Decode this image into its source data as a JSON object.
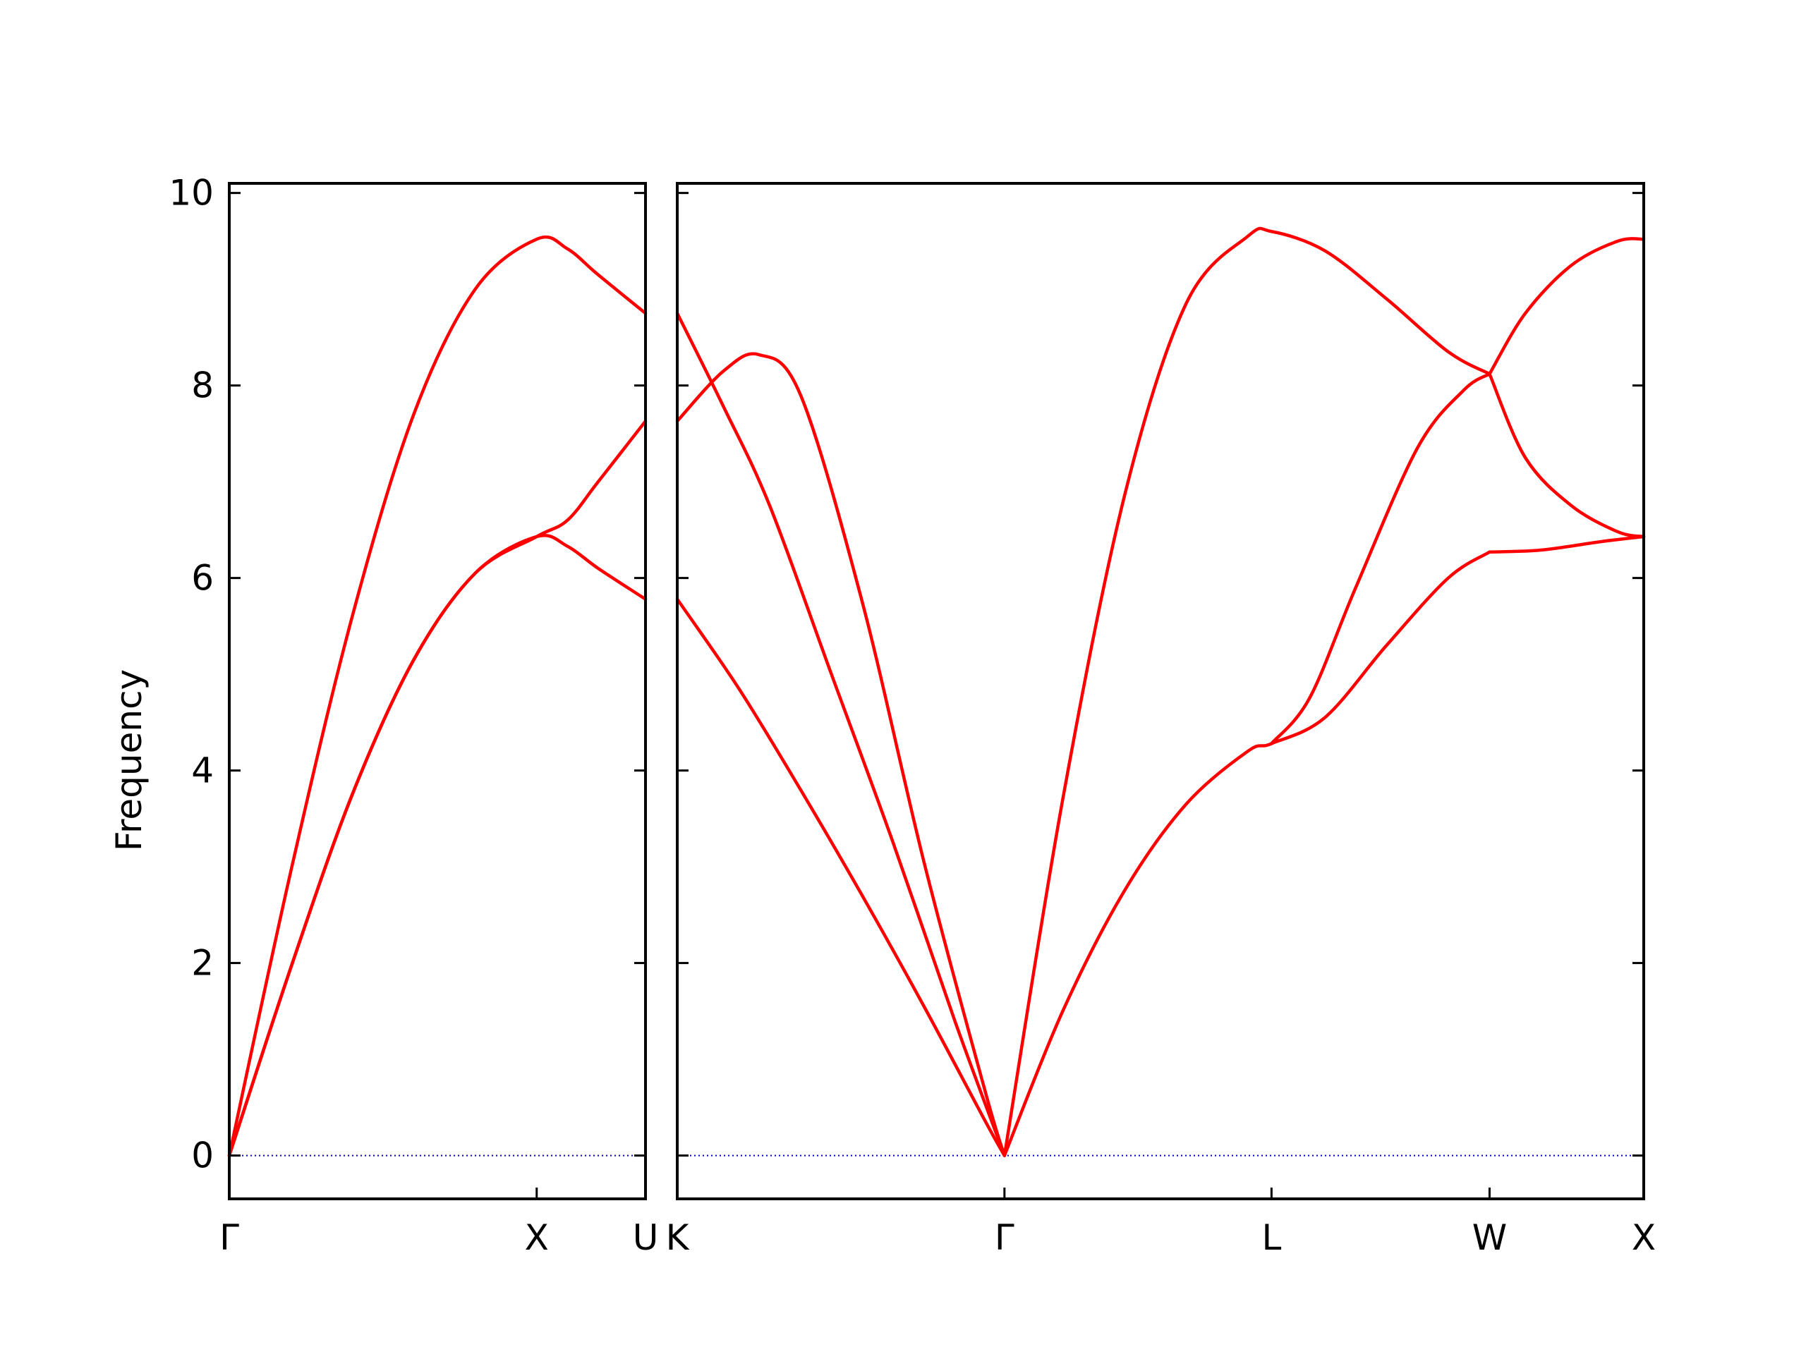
{
  "chart_data": {
    "type": "line",
    "ylabel": "Frequency",
    "ylim": [
      -0.45,
      10.1
    ],
    "yticks": [
      0,
      2,
      4,
      6,
      8,
      10
    ],
    "zero_line": {
      "y": 0,
      "color": "#0000cc",
      "style": "dotted"
    },
    "band_color": "#ff0000",
    "panels": [
      {
        "id": "left",
        "xticks": [
          {
            "label": "Γ",
            "x": 0
          },
          {
            "label": "X",
            "x": 1
          },
          {
            "label": "U",
            "x": 1.354
          }
        ],
        "series": [
          {
            "x": [
              0,
              0.2,
              0.4,
              0.6,
              0.8,
              1.0,
              1.1,
              1.2,
              1.354
            ],
            "y": [
              0,
              2.95,
              5.6,
              7.7,
              9.0,
              9.52,
              9.42,
              9.15,
              8.75
            ]
          },
          {
            "x": [
              0,
              0.2,
              0.4,
              0.6,
              0.8,
              1.0,
              1.1,
              1.2,
              1.354
            ],
            "y": [
              0,
              1.95,
              3.75,
              5.15,
              6.05,
              6.43,
              6.33,
              6.1,
              5.78
            ]
          },
          {
            "x": [
              0,
              0.2,
              0.4,
              0.6,
              0.8,
              1.0,
              1.1,
              1.2,
              1.354
            ],
            "y": [
              0,
              1.95,
              3.75,
              5.15,
              6.05,
              6.43,
              6.6,
              7.0,
              7.63
            ]
          }
        ]
      },
      {
        "id": "right",
        "xticks": [
          {
            "label": "K",
            "x": 0
          },
          {
            "label": "Γ",
            "x": 1.061
          },
          {
            "label": "L",
            "x": 1.927
          },
          {
            "label": "W",
            "x": 2.634
          },
          {
            "label": "X",
            "x": 3.134
          }
        ],
        "series": [
          {
            "x": [
              0,
              0.15,
              0.3,
              0.5,
              0.7,
              0.9,
              1.061
            ],
            "y": [
              8.75,
              7.78,
              6.75,
              5.0,
              3.25,
              1.4,
              0
            ]
          },
          {
            "x": [
              0,
              0.15,
              0.265,
              0.4,
              0.6,
              0.8,
              1.0,
              1.061
            ],
            "y": [
              7.63,
              8.15,
              8.32,
              7.9,
              5.75,
              3.05,
              0.65,
              0
            ]
          },
          {
            "x": [
              0,
              0.2,
              0.4,
              0.6,
              0.8,
              1.0,
              1.061
            ],
            "y": [
              5.78,
              4.85,
              3.8,
              2.7,
              1.55,
              0.35,
              0
            ]
          },
          {
            "x": [
              1.061,
              1.25,
              1.45,
              1.65,
              1.85,
              1.927,
              2.1,
              2.3,
              2.5,
              2.634
            ],
            "y": [
              0,
              3.7,
              6.85,
              8.85,
              9.55,
              9.6,
              9.4,
              8.9,
              8.35,
              8.12
            ]
          },
          {
            "x": [
              1.061,
              1.25,
              1.45,
              1.65,
              1.85,
              1.927,
              2.1,
              2.3,
              2.5,
              2.634
            ],
            "y": [
              0,
              1.5,
              2.75,
              3.65,
              4.2,
              4.28,
              4.55,
              5.3,
              6.0,
              6.27
            ]
          },
          {
            "x": [
              1.927,
              2.05,
              2.2,
              2.4,
              2.55,
              2.634
            ],
            "y": [
              4.28,
              4.75,
              5.9,
              7.35,
              7.95,
              8.12
            ]
          },
          {
            "x": [
              2.634,
              2.75,
              2.9,
              3.05,
              3.134
            ],
            "y": [
              8.12,
              8.75,
              9.25,
              9.5,
              9.52
            ]
          },
          {
            "x": [
              2.634,
              2.75,
              2.9,
              3.05,
              3.134
            ],
            "y": [
              8.12,
              7.25,
              6.75,
              6.48,
              6.43
            ]
          },
          {
            "x": [
              2.634,
              2.8,
              3.0,
              3.134
            ],
            "y": [
              6.27,
              6.29,
              6.38,
              6.43
            ]
          }
        ]
      }
    ]
  }
}
